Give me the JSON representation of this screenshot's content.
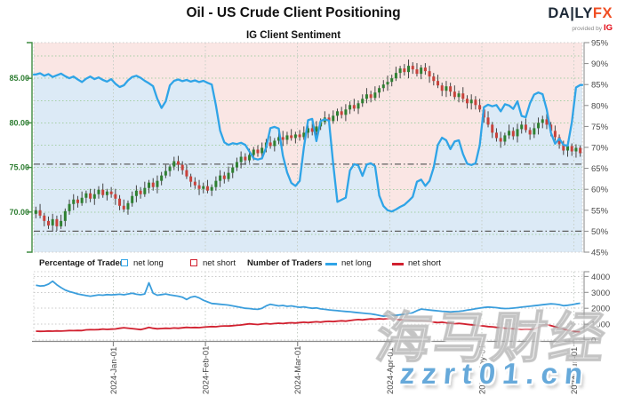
{
  "header": {
    "title": "Oil - US Crude Client Positioning",
    "subtitle": "IG Client Sentiment",
    "logo": {
      "brand_dark": "DA|LY",
      "brand_accent": "FX",
      "provided_by": "provided by",
      "ig": "IG"
    }
  },
  "legend": {
    "pct_title": "Percentage of Traders",
    "num_title": "Number of Traders",
    "net_long": "net long",
    "net_short": "net short"
  },
  "watermark": {
    "cn_text": "海马财经",
    "url_text": "zzrt01.cn"
  },
  "colors": {
    "bull": "#2f8032",
    "bear": "#c8423b",
    "wick": "#444444",
    "sentiment_line": "#2fa4e7",
    "area_above": "#fae6e4",
    "area_below": "#dceaf6",
    "net_long_line": "#3b9edc",
    "net_short_line": "#d1202f",
    "axis_green": "#3f8c40",
    "label_green": "#2e7d32",
    "label_gray": "#4a4a4a",
    "grid_green": "#a5cfa5",
    "grid_gray": "#c6cec6",
    "panel_grid": "#c8c8c8",
    "border": "#cfcfcf",
    "ref_line": "#606060",
    "axis_gray": "#8a8a8a"
  },
  "chart_data": {
    "type": "candlestick+line",
    "title": "IG Client Sentiment",
    "price_axis": {
      "side": "left",
      "min": 65.5,
      "max": 89.0,
      "tick_values": [
        85,
        80,
        75,
        70
      ],
      "tick_labels": [
        "85.00",
        "80.00",
        "75.00",
        "70.00"
      ],
      "gridline_values": [
        87.5,
        85,
        82.5,
        80,
        77.5,
        75,
        72.5,
        70,
        67.5
      ]
    },
    "sentiment_axis": {
      "side": "right",
      "min": 45,
      "max": 95,
      "tick_values": [
        95,
        90,
        85,
        80,
        75,
        70,
        65,
        60,
        55,
        50,
        45
      ],
      "tick_labels": [
        "95%",
        "90%",
        "85%",
        "80%",
        "75%",
        "70%",
        "65%",
        "60%",
        "55%",
        "50%",
        "45%"
      ]
    },
    "traders_axis": {
      "side": "right",
      "min": 0,
      "max": 4300,
      "tick_values": [
        4000,
        3000,
        2000,
        1000,
        0
      ],
      "tick_labels": [
        "4000",
        "3000",
        "2000",
        "1000",
        "0"
      ],
      "gridline_values": [
        4000,
        3000,
        2000,
        1000
      ]
    },
    "x_axis": {
      "labels": [
        "2024-Jan-01",
        "2024-Feb-01",
        "2024-Mar-01",
        "2024-Apr-01",
        "2024-May-01",
        "2024-Jun-01"
      ],
      "candle_indices": [
        19,
        41,
        63,
        85,
        107,
        129
      ]
    },
    "reference_lines_pct": [
      66,
      50
    ],
    "candles": [
      [
        69.8,
        70.6,
        69.3,
        70.2
      ],
      [
        70.2,
        70.9,
        69.3,
        69.6
      ],
      [
        69.6,
        69.9,
        68.4,
        69.0
      ],
      [
        69.0,
        69.5,
        68.1,
        68.5
      ],
      [
        68.5,
        69.8,
        67.8,
        69.2
      ],
      [
        69.2,
        69.6,
        67.9,
        68.4
      ],
      [
        68.4,
        69.7,
        68.1,
        69.0
      ],
      [
        69.0,
        70.4,
        68.4,
        70.1
      ],
      [
        70.1,
        71.4,
        69.7,
        70.9
      ],
      [
        70.9,
        72.0,
        70.2,
        71.4
      ],
      [
        71.4,
        71.8,
        70.5,
        71.0
      ],
      [
        71.0,
        72.3,
        70.7,
        71.6
      ],
      [
        71.6,
        72.4,
        71.0,
        72.1
      ],
      [
        72.1,
        72.6,
        71.1,
        71.5
      ],
      [
        71.5,
        72.6,
        70.8,
        72.0
      ],
      [
        72.0,
        72.9,
        71.5,
        72.5
      ],
      [
        72.5,
        73.2,
        71.6,
        71.9
      ],
      [
        71.9,
        72.6,
        71.3,
        72.3
      ],
      [
        72.3,
        72.8,
        71.6,
        72.0
      ],
      [
        72.0,
        72.6,
        70.8,
        71.5
      ],
      [
        71.5,
        71.9,
        70.2,
        70.7
      ],
      [
        70.7,
        71.4,
        70.0,
        70.3
      ],
      [
        70.3,
        71.3,
        69.7,
        71.0
      ],
      [
        71.0,
        72.3,
        70.6,
        71.8
      ],
      [
        71.8,
        73.0,
        71.1,
        72.4
      ],
      [
        72.4,
        72.8,
        71.5,
        72.0
      ],
      [
        72.0,
        73.4,
        71.7,
        72.7
      ],
      [
        72.7,
        73.6,
        72.1,
        73.3
      ],
      [
        73.3,
        73.8,
        72.4,
        72.8
      ],
      [
        72.8,
        74.1,
        72.1,
        73.5
      ],
      [
        73.5,
        74.5,
        73.0,
        74.1
      ],
      [
        74.1,
        75.3,
        73.8,
        74.6
      ],
      [
        74.6,
        75.4,
        74.0,
        75.1
      ],
      [
        75.1,
        76.2,
        74.7,
        75.7
      ],
      [
        75.7,
        76.3,
        74.6,
        75.3
      ],
      [
        75.3,
        75.7,
        74.2,
        74.7
      ],
      [
        74.7,
        75.4,
        73.7,
        74.0
      ],
      [
        74.0,
        74.3,
        72.8,
        73.4
      ],
      [
        73.4,
        73.9,
        72.6,
        73.0
      ],
      [
        73.0,
        73.6,
        71.9,
        72.6
      ],
      [
        72.6,
        73.3,
        72.1,
        72.9
      ],
      [
        72.9,
        73.6,
        72.1,
        72.4
      ],
      [
        72.4,
        73.1,
        71.8,
        72.8
      ],
      [
        72.8,
        74.0,
        72.4,
        73.5
      ],
      [
        73.5,
        74.7,
        72.8,
        74.1
      ],
      [
        74.1,
        74.5,
        73.2,
        73.7
      ],
      [
        73.7,
        75.1,
        73.4,
        74.4
      ],
      [
        74.4,
        75.3,
        73.8,
        75.0
      ],
      [
        75.0,
        76.1,
        74.6,
        75.6
      ],
      [
        75.6,
        76.8,
        74.9,
        76.2
      ],
      [
        76.2,
        76.6,
        75.3,
        75.8
      ],
      [
        75.8,
        77.1,
        75.5,
        76.4
      ],
      [
        76.4,
        77.3,
        75.8,
        77.0
      ],
      [
        77.0,
        77.5,
        76.2,
        76.6
      ],
      [
        76.6,
        77.8,
        75.9,
        77.2
      ],
      [
        77.2,
        78.2,
        76.7,
        77.8
      ],
      [
        77.8,
        78.5,
        77.1,
        77.4
      ],
      [
        77.4,
        78.3,
        76.8,
        78.0
      ],
      [
        78.0,
        78.9,
        77.6,
        78.4
      ],
      [
        78.4,
        79.1,
        77.4,
        78.1
      ],
      [
        78.1,
        79.0,
        77.6,
        78.6
      ],
      [
        78.6,
        79.3,
        78.0,
        78.3
      ],
      [
        78.3,
        79.0,
        77.7,
        78.7
      ],
      [
        78.7,
        79.2,
        78.0,
        78.4
      ],
      [
        78.4,
        79.6,
        78.1,
        78.9
      ],
      [
        78.9,
        79.7,
        78.3,
        79.4
      ],
      [
        79.4,
        79.9,
        78.6,
        79.0
      ],
      [
        79.0,
        80.2,
        78.3,
        79.6
      ],
      [
        79.6,
        80.5,
        79.2,
        80.1
      ],
      [
        80.1,
        81.3,
        79.8,
        80.6
      ],
      [
        80.6,
        81.0,
        79.6,
        80.2
      ],
      [
        80.2,
        81.4,
        79.9,
        80.8
      ],
      [
        80.8,
        81.6,
        80.2,
        81.3
      ],
      [
        81.3,
        81.8,
        80.5,
        80.9
      ],
      [
        80.9,
        82.1,
        80.2,
        81.5
      ],
      [
        81.5,
        82.4,
        81.0,
        82.0
      ],
      [
        82.0,
        82.7,
        81.3,
        81.6
      ],
      [
        81.6,
        82.5,
        81.0,
        82.2
      ],
      [
        82.2,
        83.2,
        81.8,
        82.7
      ],
      [
        82.7,
        83.9,
        82.2,
        83.2
      ],
      [
        83.2,
        83.6,
        82.3,
        82.8
      ],
      [
        82.8,
        84.1,
        82.5,
        83.4
      ],
      [
        83.4,
        84.2,
        82.8,
        83.9
      ],
      [
        83.9,
        84.8,
        83.5,
        84.3
      ],
      [
        84.3,
        85.3,
        83.6,
        84.6
      ],
      [
        84.6,
        85.4,
        84.1,
        85.0
      ],
      [
        85.0,
        86.3,
        84.7,
        85.6
      ],
      [
        85.6,
        86.4,
        85.0,
        86.1
      ],
      [
        86.1,
        86.6,
        85.3,
        85.7
      ],
      [
        85.7,
        87.1,
        85.0,
        86.4
      ],
      [
        86.4,
        86.8,
        85.5,
        86.0
      ],
      [
        86.0,
        86.7,
        85.2,
        85.5
      ],
      [
        85.5,
        86.5,
        84.9,
        86.2
      ],
      [
        86.2,
        86.7,
        85.4,
        85.8
      ],
      [
        85.8,
        86.4,
        84.5,
        85.2
      ],
      [
        85.2,
        85.6,
        84.2,
        84.7
      ],
      [
        84.7,
        85.4,
        83.9,
        84.2
      ],
      [
        84.2,
        84.5,
        83.0,
        83.6
      ],
      [
        83.6,
        84.7,
        82.9,
        84.1
      ],
      [
        84.1,
        84.5,
        83.0,
        83.5
      ],
      [
        83.5,
        84.2,
        82.6,
        82.9
      ],
      [
        82.9,
        83.6,
        82.3,
        83.3
      ],
      [
        83.3,
        84.0,
        82.3,
        82.7
      ],
      [
        82.7,
        83.1,
        81.6,
        82.2
      ],
      [
        82.2,
        83.2,
        81.5,
        82.6
      ],
      [
        82.6,
        83.0,
        81.5,
        82.0
      ],
      [
        82.0,
        82.7,
        81.2,
        81.5
      ],
      [
        81.5,
        81.8,
        80.0,
        80.6
      ],
      [
        80.6,
        81.3,
        79.5,
        79.8
      ],
      [
        79.8,
        80.1,
        78.3,
        78.9
      ],
      [
        78.9,
        79.4,
        77.9,
        78.3
      ],
      [
        78.3,
        79.0,
        77.2,
        77.9
      ],
      [
        77.9,
        78.9,
        77.5,
        78.6
      ],
      [
        78.6,
        79.8,
        78.2,
        79.1
      ],
      [
        79.1,
        79.5,
        78.1,
        78.5
      ],
      [
        78.5,
        79.9,
        77.8,
        79.3
      ],
      [
        79.3,
        80.2,
        78.8,
        79.8
      ],
      [
        79.8,
        80.5,
        78.9,
        79.2
      ],
      [
        79.2,
        79.5,
        78.1,
        78.7
      ],
      [
        78.7,
        80.0,
        78.3,
        79.4
      ],
      [
        79.4,
        80.6,
        78.7,
        80.0
      ],
      [
        80.0,
        80.8,
        79.4,
        80.4
      ],
      [
        80.4,
        81.0,
        79.3,
        79.8
      ],
      [
        79.8,
        80.1,
        78.5,
        79.1
      ],
      [
        79.1,
        79.7,
        78.0,
        78.4
      ],
      [
        78.4,
        78.7,
        77.1,
        77.6
      ],
      [
        77.6,
        78.0,
        76.4,
        76.9
      ],
      [
        76.9,
        77.9,
        76.2,
        77.4
      ],
      [
        77.4,
        77.7,
        76.3,
        76.8
      ],
      [
        76.8,
        77.6,
        76.1,
        77.2
      ],
      [
        77.2,
        77.5,
        76.2,
        76.6
      ]
    ],
    "sentiment_pct": [
      87.4,
      87.7,
      87.1,
      87.5,
      86.8,
      87.2,
      87.6,
      87.0,
      86.5,
      86.9,
      86.2,
      85.6,
      86.4,
      86.9,
      86.3,
      86.7,
      86.1,
      85.7,
      86.3,
      85.2,
      84.4,
      84.8,
      86.0,
      86.8,
      87.1,
      86.6,
      85.9,
      85.3,
      84.6,
      81.6,
      79.4,
      81.0,
      84.8,
      85.9,
      86.2,
      85.8,
      86.1,
      85.7,
      86.0,
      85.6,
      85.9,
      85.4,
      85.0,
      80.0,
      74.0,
      71.2,
      70.6,
      71.0,
      70.8,
      71.1,
      70.6,
      69.0,
      67.4,
      67.1,
      67.4,
      70.0,
      74.6,
      74.9,
      74.5,
      68.0,
      64.0,
      61.5,
      60.8,
      62.0,
      70.0,
      76.5,
      76.8,
      71.5,
      76.3,
      76.7,
      76.4,
      66.0,
      57.0,
      57.5,
      58.0,
      64.5,
      66.0,
      65.7,
      63.2,
      65.9,
      66.2,
      65.5,
      58.5,
      56.0,
      55.0,
      54.7,
      55.2,
      55.8,
      56.3,
      57.2,
      58.2,
      61.8,
      62.3,
      60.8,
      62.0,
      65.2,
      70.6,
      72.3,
      71.7,
      69.6,
      71.4,
      71.7,
      68.4,
      66.1,
      65.8,
      66.2,
      70.5,
      79.6,
      80.2,
      79.8,
      80.1,
      78.6,
      80.3,
      80.0,
      79.2,
      81.0,
      77.5,
      77.2,
      80.5,
      82.6,
      83.1,
      82.7,
      79.0,
      73.5,
      70.9,
      72.1,
      70.6,
      70.4,
      76.0,
      84.3,
      84.9
    ],
    "traders": {
      "net_long": [
        3450,
        3400,
        3420,
        3520,
        3700,
        3480,
        3300,
        3150,
        3050,
        2980,
        2900,
        2850,
        2800,
        2760,
        2800,
        2840,
        2820,
        2860,
        2840,
        2860,
        2880,
        2850,
        2900,
        2950,
        2880,
        2850,
        2900,
        3600,
        2950,
        2820,
        2860,
        2900,
        2840,
        2800,
        2760,
        2700,
        2550,
        2700,
        2750,
        2650,
        2500,
        2400,
        2300,
        2280,
        2250,
        2230,
        2200,
        2150,
        2100,
        2050,
        2000,
        1980,
        1950,
        1930,
        2000,
        2150,
        2250,
        2200,
        2150,
        2180,
        2120,
        2150,
        2100,
        2060,
        2090,
        2040,
        2000,
        2020,
        1960,
        1930,
        1900,
        1870,
        1850,
        1820,
        1800,
        1780,
        1750,
        1720,
        1700,
        1670,
        1650,
        1600,
        1550,
        1500,
        1520,
        1560,
        1550,
        1590,
        1620,
        1660,
        1720,
        1850,
        1950,
        1920,
        1890,
        1860,
        1840,
        1810,
        1790,
        1770,
        1790,
        1810,
        1840,
        1880,
        1920,
        1970,
        2010,
        2050,
        2080,
        2060,
        2040,
        2000,
        1980,
        1990,
        2010,
        2040,
        2070,
        2100,
        2130,
        2160,
        2190,
        2220,
        2250,
        2280,
        2260,
        2230,
        2160,
        2190,
        2230,
        2280,
        2320
      ],
      "net_short": [
        560,
        545,
        555,
        570,
        560,
        575,
        565,
        580,
        600,
        590,
        605,
        595,
        640,
        655,
        645,
        660,
        690,
        670,
        685,
        700,
        740,
        775,
        750,
        720,
        690,
        660,
        720,
        800,
        740,
        710,
        725,
        745,
        730,
        760,
        745,
        770,
        800,
        780,
        795,
        780,
        810,
        830,
        850,
        840,
        870,
        890,
        880,
        905,
        925,
        950,
        990,
        1020,
        1000,
        980,
        1010,
        1040,
        1010,
        1040,
        1060,
        1040,
        1070,
        1090,
        1070,
        1100,
        1120,
        1100,
        1130,
        1150,
        1130,
        1160,
        1180,
        1160,
        1190,
        1210,
        1190,
        1230,
        1260,
        1290,
        1270,
        1300,
        1330,
        1310,
        1340,
        1320,
        1350,
        1330,
        1300,
        1270,
        1290,
        1260,
        1230,
        1200,
        1220,
        1190,
        1160,
        1130,
        1100,
        1120,
        1090,
        1060,
        1030,
        1050,
        1020,
        990,
        960,
        930,
        900,
        880,
        850,
        830,
        800,
        780,
        750,
        730,
        710,
        690,
        670,
        690,
        680,
        700,
        790,
        930,
        960,
        910,
        840,
        760,
        680,
        620,
        570,
        530,
        515
      ]
    }
  }
}
